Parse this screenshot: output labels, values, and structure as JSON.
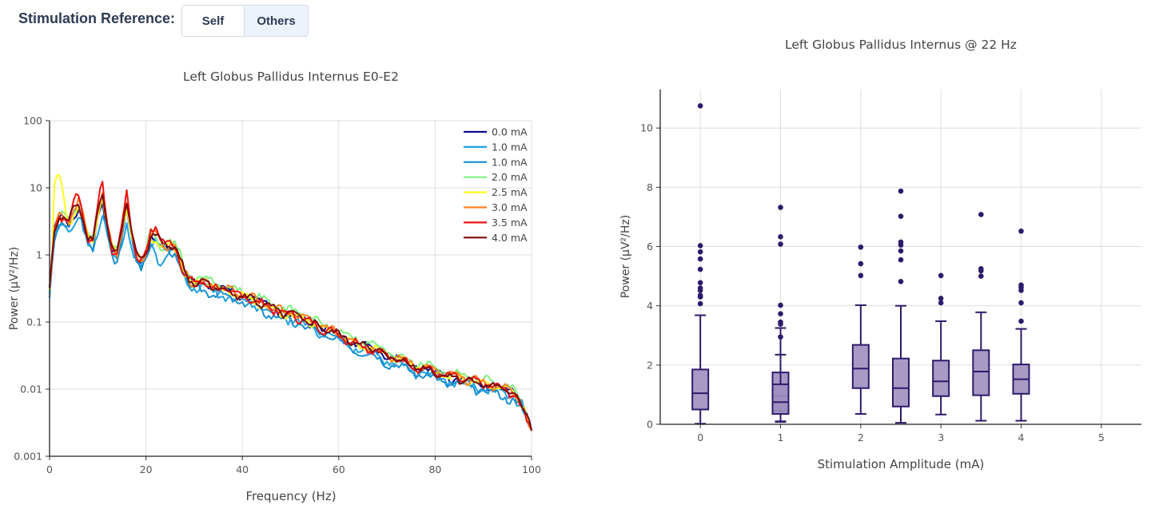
{
  "header": {
    "label": "Stimulation Reference:",
    "buttons": [
      {
        "label": "Self",
        "active": false
      },
      {
        "label": "Others",
        "active": true
      }
    ]
  },
  "chart_data": [
    {
      "type": "line",
      "title": "Left Globus Pallidus Internus E0-E2",
      "xlabel": "Frequency (Hz)",
      "ylabel": "Power (µV²/Hz)",
      "xlim": [
        0,
        100
      ],
      "ylim": [
        0.001,
        100
      ],
      "yscale": "log",
      "xticks": [
        "0",
        "20",
        "40",
        "60",
        "80",
        "100"
      ],
      "yticks": [
        "0.001",
        "0.01",
        "0.1",
        "1",
        "10",
        "100"
      ],
      "grid": true,
      "legend_position": "top-right",
      "base_curve": {
        "x": [
          0,
          1,
          2,
          3,
          4,
          5,
          6,
          7,
          8,
          9,
          10,
          11,
          12,
          13,
          14,
          15,
          16,
          17,
          18,
          19,
          20,
          21,
          22,
          23,
          24,
          25,
          26,
          27,
          28,
          29,
          30,
          32,
          34,
          36,
          38,
          40,
          42,
          44,
          46,
          48,
          50,
          52,
          54,
          56,
          58,
          60,
          62,
          64,
          66,
          68,
          70,
          72,
          74,
          76,
          78,
          80,
          82,
          84,
          86,
          88,
          90,
          92,
          94,
          96,
          98,
          100
        ],
        "y": [
          0.3,
          2.2,
          3.8,
          3.6,
          2.9,
          3.6,
          4.8,
          3.2,
          1.8,
          1.5,
          3.5,
          6.5,
          2.5,
          1.2,
          1.0,
          2.0,
          4.6,
          1.8,
          1.0,
          0.8,
          1.1,
          1.8,
          1.6,
          1.2,
          1.3,
          1.4,
          1.3,
          0.9,
          0.55,
          0.42,
          0.38,
          0.4,
          0.33,
          0.3,
          0.28,
          0.24,
          0.22,
          0.19,
          0.16,
          0.14,
          0.13,
          0.115,
          0.1,
          0.085,
          0.075,
          0.065,
          0.055,
          0.048,
          0.042,
          0.037,
          0.032,
          0.028,
          0.025,
          0.022,
          0.02,
          0.018,
          0.016,
          0.015,
          0.014,
          0.013,
          0.012,
          0.011,
          0.01,
          0.009,
          0.006,
          0.0025
        ]
      },
      "series": [
        {
          "name": "0.0 mA",
          "color": "#0a0a8c",
          "scale": 1.0,
          "peak_boost": 1.0,
          "noise_seed": 1
        },
        {
          "name": "1.0 mA",
          "color": "#1fa0e0",
          "scale": 0.85,
          "peak_boost": 0.8,
          "noise_seed": 2
        },
        {
          "name": "1.0 mA",
          "color": "#1890d0",
          "scale": 0.8,
          "peak_boost": 1.3,
          "noise_seed": 3
        },
        {
          "name": "2.0 mA",
          "color": "#7df47d",
          "scale": 1.15,
          "peak_boost": 1.0,
          "noise_seed": 4
        },
        {
          "name": "2.5 mA",
          "color": "#ffff1a",
          "scale": 1.0,
          "peak_boost": 1.1,
          "noise_seed": 5,
          "low_peak": 15
        },
        {
          "name": "3.0 mA",
          "color": "#ff8020",
          "scale": 1.05,
          "peak_boost": 1.2,
          "noise_seed": 6
        },
        {
          "name": "3.5 mA",
          "color": "#f01010",
          "scale": 1.0,
          "peak_boost": 1.6,
          "noise_seed": 7
        },
        {
          "name": "4.0 mA",
          "color": "#7a0a0a",
          "scale": 1.0,
          "peak_boost": 1.3,
          "noise_seed": 8
        }
      ]
    },
    {
      "type": "box",
      "title": "Left Globus Pallidus Internus @ 22 Hz",
      "xlabel": "Stimulation Amplitude (mA)",
      "ylabel": "Power (µV²/Hz)",
      "xlim": [
        -0.5,
        5.5
      ],
      "ylim": [
        0,
        11.3
      ],
      "xticks": [
        "0",
        "1",
        "2",
        "3",
        "4",
        "5"
      ],
      "yticks": [
        "0",
        "2",
        "4",
        "6",
        "8",
        "10"
      ],
      "grid": true,
      "color": "#2e1a6b",
      "fill": "#9d8fbf",
      "boxes": [
        {
          "x": 0,
          "low": 0.02,
          "q1": 0.5,
          "median": 1.05,
          "q3": 1.85,
          "high": 3.68,
          "outliers": [
            10.75,
            6.03,
            5.82,
            5.58,
            5.23,
            4.78,
            4.6,
            4.52,
            4.35,
            4.3,
            4.07
          ]
        },
        {
          "x": 1,
          "low": 0.1,
          "q1": 0.45,
          "median": 0.95,
          "q3": 1.75,
          "high": 3.25,
          "outliers": [
            7.32,
            6.33,
            6.08,
            4.02,
            3.73,
            3.45,
            3.38,
            2.95
          ]
        },
        {
          "x": 1,
          "low": 0.08,
          "q1": 0.35,
          "median": 0.75,
          "q3": 1.35,
          "high": 2.35,
          "outliers": []
        },
        {
          "x": 2,
          "low": 0.35,
          "q1": 1.22,
          "median": 1.88,
          "q3": 2.68,
          "high": 4.02,
          "outliers": [
            5.98,
            5.42,
            5.02
          ]
        },
        {
          "x": 2.5,
          "low": 0.05,
          "q1": 0.6,
          "median": 1.22,
          "q3": 2.22,
          "high": 4.0,
          "outliers": [
            7.87,
            7.02,
            6.15,
            6.05,
            5.85,
            5.55,
            4.82
          ]
        },
        {
          "x": 3,
          "low": 0.33,
          "q1": 0.95,
          "median": 1.45,
          "q3": 2.15,
          "high": 3.48,
          "outliers": [
            5.02,
            4.25,
            4.1
          ]
        },
        {
          "x": 3.5,
          "low": 0.12,
          "q1": 0.98,
          "median": 1.78,
          "q3": 2.5,
          "high": 3.78,
          "outliers": [
            7.08,
            5.25,
            5.18,
            5.0
          ]
        },
        {
          "x": 4,
          "low": 0.12,
          "q1": 1.03,
          "median": 1.52,
          "q3": 2.02,
          "high": 3.22,
          "outliers": [
            6.52,
            4.7,
            4.62,
            4.52,
            4.1,
            3.48
          ]
        }
      ]
    }
  ]
}
